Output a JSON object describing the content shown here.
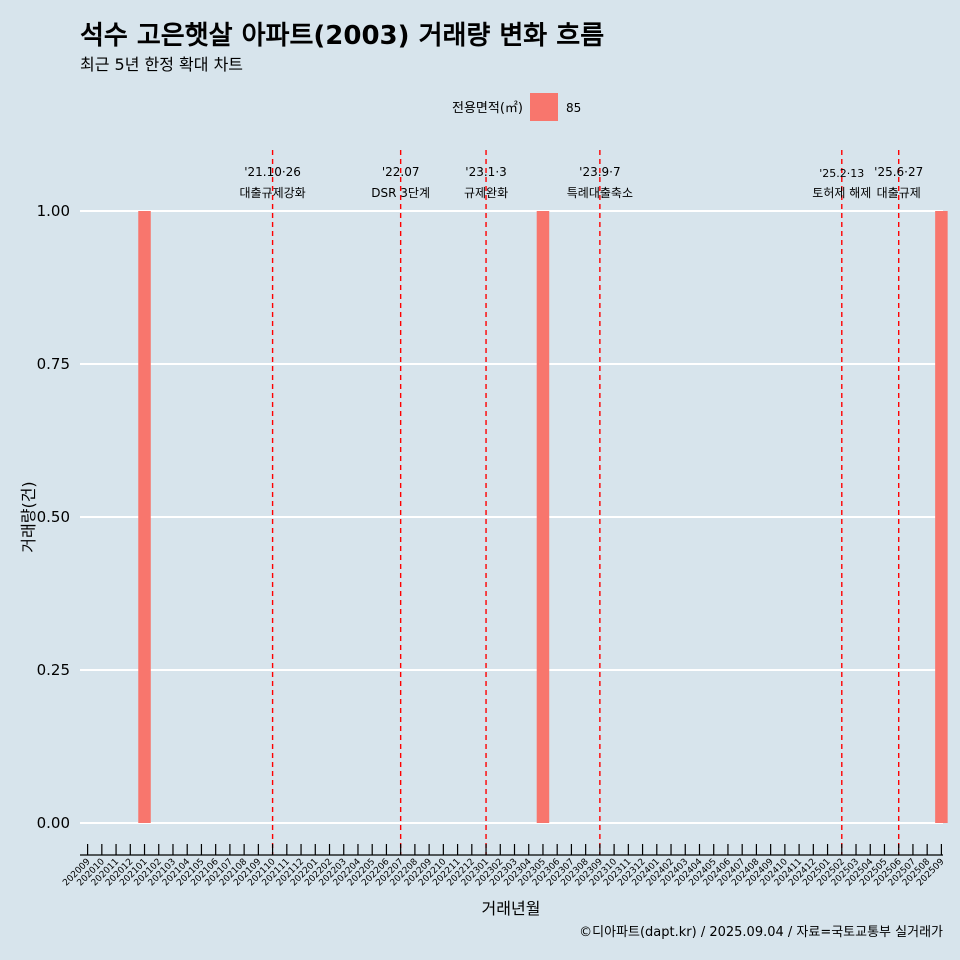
{
  "chart_data": {
    "type": "bar",
    "title": "석수 고은햇살 아파트(2003) 거래량 변화 흐름",
    "subtitle": "최근 5년 한정 확대 차트",
    "xlabel": "거래년월",
    "ylabel": "거래량(건)",
    "ylim": [
      0,
      1
    ],
    "y_ticks": [
      "0.00",
      "0.25",
      "0.50",
      "0.75",
      "1.00"
    ],
    "legend": {
      "title": "전용면적(㎡)",
      "placement": "top",
      "entries": [
        {
          "label": "85",
          "color": "#f8766d"
        }
      ]
    },
    "categories": [
      "202009",
      "202010",
      "202011",
      "202012",
      "202101",
      "202102",
      "202103",
      "202104",
      "202105",
      "202106",
      "202107",
      "202108",
      "202109",
      "202110",
      "202111",
      "202112",
      "202201",
      "202202",
      "202203",
      "202204",
      "202205",
      "202206",
      "202207",
      "202208",
      "202209",
      "202210",
      "202211",
      "202212",
      "202301",
      "202302",
      "202303",
      "202304",
      "202305",
      "202306",
      "202307",
      "202308",
      "202309",
      "202310",
      "202311",
      "202312",
      "202401",
      "202402",
      "202403",
      "202404",
      "202405",
      "202406",
      "202407",
      "202408",
      "202409",
      "202410",
      "202411",
      "202412",
      "202501",
      "202502",
      "202503",
      "202504",
      "202505",
      "202506",
      "202507",
      "202508",
      "202509"
    ],
    "series": [
      {
        "name": "85",
        "color": "#f8766d",
        "points": [
          {
            "x": "202101",
            "y": 1
          },
          {
            "x": "202305",
            "y": 1
          },
          {
            "x": "202509",
            "y": 1
          }
        ]
      }
    ],
    "annotations": [
      {
        "x": "202110",
        "date": "'21.10·26",
        "label": "대출규제강화"
      },
      {
        "x": "202207",
        "date": "'22.07",
        "label": "DSR 3단계"
      },
      {
        "x": "202301",
        "date": "'23.1·3",
        "label": "규제완화"
      },
      {
        "x": "202309",
        "date": "'23.9·7",
        "label": "특례대출축소"
      },
      {
        "x": "202502",
        "date": "'25.2·13",
        "label": "토허제 해제"
      },
      {
        "x": "202506",
        "date": "'25.6·27",
        "label": "대출규제"
      }
    ],
    "grid": "horizontal",
    "caption": "©디아파트(dapt.kr) / 2025.09.04 / 자료=국토교통부 실거래가"
  }
}
